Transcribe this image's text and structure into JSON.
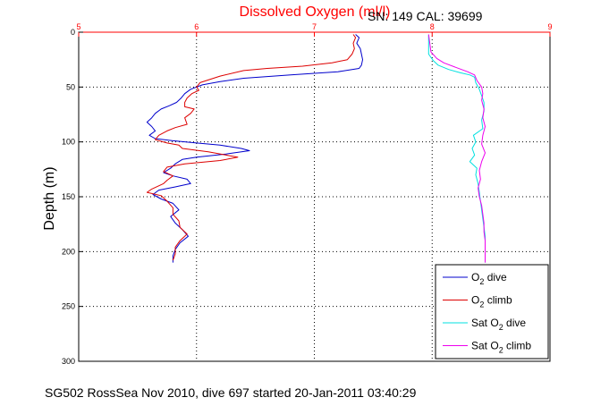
{
  "chart_data": {
    "type": "line",
    "title": "Dissolved Oxygen (ml/l)",
    "header_info": "SN: 149  CAL: 39699",
    "footer": "SG502 RossSea Nov 2010, dive 697 started 20-Jan-2011 03:40:29",
    "xlabel": "",
    "ylabel": "Depth (m)",
    "xlim": [
      5,
      9
    ],
    "ylim": [
      0,
      300
    ],
    "y_reversed": true,
    "grid": true,
    "x_axis_location": "top",
    "x_ticks": [
      5,
      6,
      7,
      8,
      9
    ],
    "y_ticks": [
      0,
      50,
      100,
      150,
      200,
      250,
      300
    ],
    "colors": {
      "title": "#ff0000",
      "top_axis": "#ff0000",
      "o2_dive": "#0000cc",
      "o2_climb": "#dd0000",
      "sat_dive": "#00e0e0",
      "sat_climb": "#ee00ee"
    },
    "legend": {
      "placement": "bottom-right",
      "entries": [
        {
          "base": "O",
          "sub": "2",
          "suffix": " dive",
          "color": "#0000cc"
        },
        {
          "base": "O",
          "sub": "2",
          "suffix": " climb",
          "color": "#dd0000"
        },
        {
          "base": "Sat O",
          "sub": "2",
          "suffix": " dive",
          "color": "#00e0e0"
        },
        {
          "base": "Sat O",
          "sub": "2",
          "suffix": " climb",
          "color": "#ee00ee"
        }
      ]
    },
    "series": [
      {
        "name": "O2 dive",
        "color": "#0000cc",
        "points": [
          [
            7.35,
            2
          ],
          [
            7.38,
            5
          ],
          [
            7.36,
            10
          ],
          [
            7.39,
            15
          ],
          [
            7.4,
            20
          ],
          [
            7.41,
            25
          ],
          [
            7.4,
            30
          ],
          [
            7.38,
            33
          ],
          [
            7.2,
            36
          ],
          [
            6.8,
            39
          ],
          [
            6.4,
            42
          ],
          [
            6.2,
            45
          ],
          [
            6.05,
            48
          ],
          [
            5.95,
            52
          ],
          [
            5.9,
            56
          ],
          [
            5.87,
            60
          ],
          [
            5.83,
            64
          ],
          [
            5.77,
            67
          ],
          [
            5.7,
            70
          ],
          [
            5.65,
            74
          ],
          [
            5.62,
            78
          ],
          [
            5.58,
            82
          ],
          [
            5.62,
            86
          ],
          [
            5.65,
            90
          ],
          [
            5.6,
            94
          ],
          [
            5.65,
            97
          ],
          [
            5.8,
            99
          ],
          [
            6.0,
            101
          ],
          [
            6.2,
            103
          ],
          [
            6.38,
            106
          ],
          [
            6.45,
            108
          ],
          [
            6.25,
            111
          ],
          [
            6.0,
            114
          ],
          [
            5.88,
            116
          ],
          [
            5.82,
            120
          ],
          [
            5.78,
            124
          ],
          [
            5.72,
            128
          ],
          [
            5.8,
            131
          ],
          [
            5.92,
            134
          ],
          [
            5.95,
            138
          ],
          [
            5.82,
            141
          ],
          [
            5.68,
            144
          ],
          [
            5.63,
            148
          ],
          [
            5.7,
            152
          ],
          [
            5.8,
            156
          ],
          [
            5.85,
            162
          ],
          [
            5.78,
            168
          ],
          [
            5.82,
            174
          ],
          [
            5.88,
            180
          ],
          [
            5.93,
            186
          ],
          [
            5.86,
            192
          ],
          [
            5.82,
            198
          ],
          [
            5.8,
            204
          ],
          [
            5.8,
            210
          ]
        ]
      },
      {
        "name": "O2 climb",
        "color": "#dd0000",
        "points": [
          [
            7.33,
            2
          ],
          [
            7.35,
            5
          ],
          [
            7.33,
            10
          ],
          [
            7.34,
            15
          ],
          [
            7.32,
            20
          ],
          [
            7.28,
            25
          ],
          [
            7.15,
            28
          ],
          [
            6.9,
            31
          ],
          [
            6.6,
            33
          ],
          [
            6.4,
            35
          ],
          [
            6.2,
            40
          ],
          [
            6.03,
            46
          ],
          [
            6.0,
            50
          ],
          [
            6.02,
            53
          ],
          [
            5.96,
            56
          ],
          [
            5.92,
            60
          ],
          [
            5.9,
            64
          ],
          [
            5.9,
            68
          ],
          [
            5.98,
            70
          ],
          [
            5.95,
            74
          ],
          [
            5.9,
            78
          ],
          [
            5.92,
            84
          ],
          [
            5.82,
            87
          ],
          [
            5.75,
            90
          ],
          [
            5.68,
            94
          ],
          [
            5.65,
            98
          ],
          [
            5.75,
            101
          ],
          [
            5.85,
            103
          ],
          [
            5.88,
            106
          ],
          [
            6.1,
            109
          ],
          [
            6.25,
            112
          ],
          [
            6.35,
            114
          ],
          [
            6.2,
            117
          ],
          [
            5.9,
            120
          ],
          [
            5.75,
            123
          ],
          [
            5.72,
            127
          ],
          [
            5.8,
            131
          ],
          [
            5.75,
            135
          ],
          [
            5.72,
            138
          ],
          [
            5.62,
            143
          ],
          [
            5.58,
            146
          ],
          [
            5.7,
            149
          ],
          [
            5.75,
            154
          ],
          [
            5.8,
            160
          ],
          [
            5.8,
            166
          ],
          [
            5.85,
            172
          ],
          [
            5.86,
            178
          ],
          [
            5.92,
            184
          ],
          [
            5.86,
            190
          ],
          [
            5.82,
            196
          ],
          [
            5.82,
            202
          ],
          [
            5.8,
            208
          ]
        ]
      },
      {
        "name": "Sat O2 dive",
        "color": "#00e0e0",
        "points": [
          [
            7.97,
            2
          ],
          [
            7.97,
            10
          ],
          [
            7.97,
            20
          ],
          [
            8.01,
            26
          ],
          [
            8.05,
            30
          ],
          [
            8.14,
            34
          ],
          [
            8.24,
            37
          ],
          [
            8.32,
            39
          ],
          [
            8.36,
            41
          ],
          [
            8.37,
            46
          ],
          [
            8.4,
            52
          ],
          [
            8.42,
            58
          ],
          [
            8.44,
            64
          ],
          [
            8.44,
            72
          ],
          [
            8.42,
            80
          ],
          [
            8.43,
            88
          ],
          [
            8.35,
            94
          ],
          [
            8.37,
            100
          ],
          [
            8.34,
            106
          ],
          [
            8.36,
            112
          ],
          [
            8.32,
            118
          ],
          [
            8.38,
            124
          ],
          [
            8.37,
            130
          ],
          [
            8.39,
            138
          ],
          [
            8.4,
            146
          ],
          [
            8.41,
            154
          ],
          [
            8.42,
            162
          ],
          [
            8.43,
            170
          ],
          [
            8.44,
            178
          ],
          [
            8.45,
            186
          ],
          [
            8.45,
            194
          ],
          [
            8.45,
            202
          ],
          [
            8.45,
            210
          ]
        ]
      },
      {
        "name": "Sat O2 climb",
        "color": "#ee00ee",
        "points": [
          [
            7.97,
            2
          ],
          [
            7.98,
            10
          ],
          [
            7.99,
            18
          ],
          [
            8.04,
            24
          ],
          [
            8.1,
            28
          ],
          [
            8.2,
            32
          ],
          [
            8.3,
            36
          ],
          [
            8.36,
            39
          ],
          [
            8.38,
            44
          ],
          [
            8.42,
            50
          ],
          [
            8.43,
            56
          ],
          [
            8.42,
            62
          ],
          [
            8.44,
            70
          ],
          [
            8.43,
            78
          ],
          [
            8.45,
            86
          ],
          [
            8.43,
            94
          ],
          [
            8.42,
            102
          ],
          [
            8.45,
            110
          ],
          [
            8.42,
            118
          ],
          [
            8.4,
            126
          ],
          [
            8.41,
            134
          ],
          [
            8.39,
            142
          ],
          [
            8.4,
            150
          ],
          [
            8.42,
            158
          ],
          [
            8.43,
            166
          ],
          [
            8.44,
            174
          ],
          [
            8.44,
            182
          ],
          [
            8.45,
            190
          ],
          [
            8.45,
            198
          ],
          [
            8.45,
            206
          ],
          [
            8.45,
            210
          ]
        ]
      }
    ]
  }
}
